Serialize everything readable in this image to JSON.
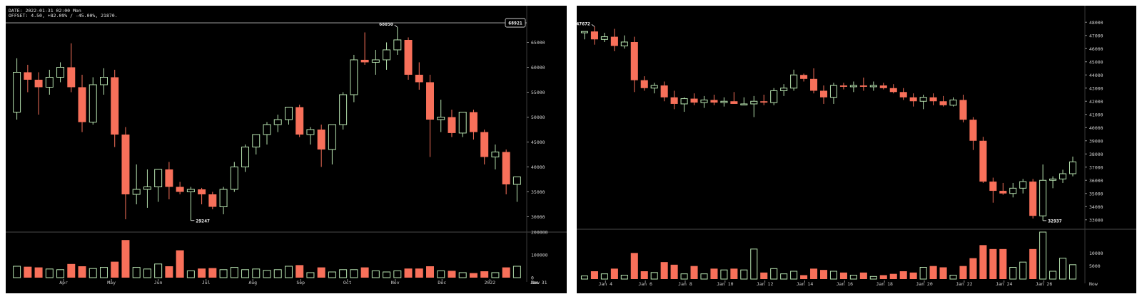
{
  "colors": {
    "background": "#000000",
    "up": "#b7e3b0",
    "down": "#f8705a",
    "axis_text": "#d0d0d0"
  },
  "chart_data": [
    {
      "type": "candlestick",
      "info_line_1": "DATE: 2022-01-31 02:00 Mon",
      "info_line_2": "OFFSET: 4.50, +82.09% / -45.00%, 21870.",
      "price_label": "68921",
      "high_label": "68050",
      "low_label": "29247",
      "ylim": [
        27500,
        69500
      ],
      "yticks": [
        "65000",
        "60000",
        "55000",
        "50000",
        "45000",
        "40000",
        "35000",
        "30000"
      ],
      "volume_ylim": [
        0,
        200000
      ],
      "volume_ticks": [
        "200000",
        "100000",
        "0"
      ],
      "xticks": [
        "Apr",
        "May",
        "Jun",
        "Jul",
        "Aug",
        "Sep",
        "Oct",
        "Nov",
        "Dec",
        "2022"
      ],
      "xtick_positions": [
        4.3,
        8.7,
        13.0,
        17.4,
        21.7,
        26.1,
        30.4,
        34.8,
        39.1,
        43.5
      ],
      "x_end_label": "Jan 31",
      "x_end_label_position": 48,
      "x_now_label": "Now",
      "candles": [
        {
          "o": 51000,
          "h": 61800,
          "l": 49500,
          "c": 59000,
          "v": 50000
        },
        {
          "o": 59000,
          "h": 60500,
          "l": 55000,
          "c": 57500,
          "v": 48000
        },
        {
          "o": 57500,
          "h": 59000,
          "l": 50500,
          "c": 56000,
          "v": 45000
        },
        {
          "o": 56000,
          "h": 59500,
          "l": 54500,
          "c": 58000,
          "v": 38000
        },
        {
          "o": 58000,
          "h": 61000,
          "l": 57000,
          "c": 60000,
          "v": 35000
        },
        {
          "o": 60000,
          "h": 64800,
          "l": 55000,
          "c": 56000,
          "v": 60000
        },
        {
          "o": 56000,
          "h": 58500,
          "l": 47000,
          "c": 49000,
          "v": 50000
        },
        {
          "o": 49000,
          "h": 58000,
          "l": 48500,
          "c": 56500,
          "v": 40000
        },
        {
          "o": 56500,
          "h": 59800,
          "l": 54500,
          "c": 58000,
          "v": 45000
        },
        {
          "o": 58000,
          "h": 59500,
          "l": 44000,
          "c": 46500,
          "v": 70000
        },
        {
          "o": 46500,
          "h": 48000,
          "l": 29500,
          "c": 34500,
          "v": 165000
        },
        {
          "o": 34500,
          "h": 40500,
          "l": 32500,
          "c": 35500,
          "v": 45000
        },
        {
          "o": 35500,
          "h": 39500,
          "l": 31800,
          "c": 36000,
          "v": 38000
        },
        {
          "o": 36000,
          "h": 39500,
          "l": 33000,
          "c": 39500,
          "v": 60000
        },
        {
          "o": 39500,
          "h": 41000,
          "l": 33500,
          "c": 36000,
          "v": 50000
        },
        {
          "o": 36000,
          "h": 37000,
          "l": 34500,
          "c": 35000,
          "v": 120000
        },
        {
          "o": 35000,
          "h": 36000,
          "l": 29247,
          "c": 35500,
          "v": 30000
        },
        {
          "o": 35500,
          "h": 35800,
          "l": 32500,
          "c": 34500,
          "v": 40000
        },
        {
          "o": 34500,
          "h": 35000,
          "l": 31500,
          "c": 32000,
          "v": 42000
        },
        {
          "o": 32000,
          "h": 36000,
          "l": 30500,
          "c": 35500,
          "v": 35000
        },
        {
          "o": 35500,
          "h": 41000,
          "l": 35000,
          "c": 40000,
          "v": 45000
        },
        {
          "o": 40000,
          "h": 44500,
          "l": 39000,
          "c": 44000,
          "v": 35000
        },
        {
          "o": 44000,
          "h": 46500,
          "l": 42500,
          "c": 46500,
          "v": 38000
        },
        {
          "o": 46500,
          "h": 49000,
          "l": 44500,
          "c": 48500,
          "v": 32000
        },
        {
          "o": 48500,
          "h": 50500,
          "l": 47000,
          "c": 49500,
          "v": 35000
        },
        {
          "o": 49500,
          "h": 52000,
          "l": 48500,
          "c": 52000,
          "v": 50000
        },
        {
          "o": 52000,
          "h": 52500,
          "l": 46000,
          "c": 46500,
          "v": 55000
        },
        {
          "o": 46500,
          "h": 48000,
          "l": 44500,
          "c": 47500,
          "v": 22000
        },
        {
          "o": 47500,
          "h": 48500,
          "l": 40000,
          "c": 43500,
          "v": 45000
        },
        {
          "o": 43500,
          "h": 48500,
          "l": 40500,
          "c": 48500,
          "v": 25000
        },
        {
          "o": 48500,
          "h": 55000,
          "l": 47500,
          "c": 54500,
          "v": 35000
        },
        {
          "o": 54500,
          "h": 62500,
          "l": 53000,
          "c": 61500,
          "v": 35000
        },
        {
          "o": 61500,
          "h": 67000,
          "l": 60500,
          "c": 61000,
          "v": 45000
        },
        {
          "o": 61000,
          "h": 63500,
          "l": 58500,
          "c": 61500,
          "v": 30000
        },
        {
          "o": 61500,
          "h": 65000,
          "l": 59500,
          "c": 63500,
          "v": 25000
        },
        {
          "o": 63500,
          "h": 68050,
          "l": 62500,
          "c": 65500,
          "v": 30000
        },
        {
          "o": 65500,
          "h": 66000,
          "l": 57500,
          "c": 58500,
          "v": 40000
        },
        {
          "o": 58500,
          "h": 61000,
          "l": 55500,
          "c": 57000,
          "v": 40000
        },
        {
          "o": 57000,
          "h": 58500,
          "l": 42000,
          "c": 49500,
          "v": 50000
        },
        {
          "o": 49500,
          "h": 53500,
          "l": 47000,
          "c": 50000,
          "v": 30000
        },
        {
          "o": 50000,
          "h": 51500,
          "l": 46000,
          "c": 46800,
          "v": 30000
        },
        {
          "o": 46800,
          "h": 51000,
          "l": 46000,
          "c": 51000,
          "v": 22000
        },
        {
          "o": 51000,
          "h": 51500,
          "l": 45500,
          "c": 47000,
          "v": 20000
        },
        {
          "o": 47000,
          "h": 47500,
          "l": 40500,
          "c": 42000,
          "v": 28000
        },
        {
          "o": 42000,
          "h": 44500,
          "l": 39500,
          "c": 43000,
          "v": 22000
        },
        {
          "o": 43000,
          "h": 43500,
          "l": 34500,
          "c": 36500,
          "v": 45000
        },
        {
          "o": 36500,
          "h": 38000,
          "l": 33000,
          "c": 38000,
          "v": 50000
        }
      ]
    },
    {
      "type": "candlestick",
      "high_label": "47672",
      "low_label": "32937",
      "ylim": [
        32500,
        48500
      ],
      "yticks": [
        "48000",
        "47000",
        "46000",
        "45000",
        "44000",
        "43000",
        "42000",
        "41000",
        "40000",
        "39000",
        "38000",
        "37000",
        "36000",
        "35000",
        "34000",
        "33000"
      ],
      "volume_ylim": [
        0,
        18000
      ],
      "volume_ticks": [
        "10000",
        "5000"
      ],
      "xticks": [
        "Jan 4",
        "Jan 6",
        "Jan 8",
        "Jan 10",
        "Jan 12",
        "Jan 14",
        "Jan 16",
        "Jan 18",
        "Jan 20",
        "Jan 22",
        "Jan 24",
        "Jan 26"
      ],
      "xtick_positions": [
        2.1,
        6.1,
        10.1,
        14.1,
        18.1,
        22.1,
        26.1,
        30.1,
        34.1,
        38.1,
        42.1,
        46.1
      ],
      "x_now_label": "Now",
      "candles": [
        {
          "o": 47200,
          "h": 47300,
          "l": 46700,
          "c": 47300,
          "v": 1200
        },
        {
          "o": 47300,
          "h": 47672,
          "l": 46300,
          "c": 46700,
          "v": 3000
        },
        {
          "o": 46700,
          "h": 47200,
          "l": 46500,
          "c": 46900,
          "v": 2000
        },
        {
          "o": 46900,
          "h": 47500,
          "l": 45800,
          "c": 46200,
          "v": 4000
        },
        {
          "o": 46200,
          "h": 47000,
          "l": 46000,
          "c": 46500,
          "v": 1500
        },
        {
          "o": 46500,
          "h": 46900,
          "l": 42700,
          "c": 43600,
          "v": 10000
        },
        {
          "o": 43600,
          "h": 43900,
          "l": 42800,
          "c": 43000,
          "v": 3000
        },
        {
          "o": 43000,
          "h": 43400,
          "l": 42600,
          "c": 43200,
          "v": 2500
        },
        {
          "o": 43200,
          "h": 43500,
          "l": 42000,
          "c": 42300,
          "v": 6500
        },
        {
          "o": 42300,
          "h": 42800,
          "l": 41400,
          "c": 41800,
          "v": 5500
        },
        {
          "o": 41800,
          "h": 42300,
          "l": 41200,
          "c": 42200,
          "v": 2000
        },
        {
          "o": 42200,
          "h": 42600,
          "l": 41700,
          "c": 41900,
          "v": 5000
        },
        {
          "o": 41900,
          "h": 42400,
          "l": 41500,
          "c": 42100,
          "v": 2000
        },
        {
          "o": 42100,
          "h": 42500,
          "l": 41700,
          "c": 41900,
          "v": 4000
        },
        {
          "o": 41900,
          "h": 42300,
          "l": 41600,
          "c": 42000,
          "v": 3500
        },
        {
          "o": 42000,
          "h": 42700,
          "l": 41800,
          "c": 41800,
          "v": 4000
        },
        {
          "o": 41800,
          "h": 42300,
          "l": 41700,
          "c": 41800,
          "v": 3500
        },
        {
          "o": 41800,
          "h": 42400,
          "l": 40800,
          "c": 42000,
          "v": 11500
        },
        {
          "o": 42000,
          "h": 42500,
          "l": 41700,
          "c": 41900,
          "v": 2500
        },
        {
          "o": 41900,
          "h": 43000,
          "l": 41700,
          "c": 42800,
          "v": 4000
        },
        {
          "o": 42800,
          "h": 43300,
          "l": 42400,
          "c": 43000,
          "v": 2000
        },
        {
          "o": 43000,
          "h": 44400,
          "l": 42800,
          "c": 44000,
          "v": 3000
        },
        {
          "o": 44000,
          "h": 44100,
          "l": 43500,
          "c": 43700,
          "v": 1500
        },
        {
          "o": 43700,
          "h": 44500,
          "l": 42600,
          "c": 42800,
          "v": 4000
        },
        {
          "o": 42800,
          "h": 43200,
          "l": 41800,
          "c": 42300,
          "v": 3500
        },
        {
          "o": 42300,
          "h": 43400,
          "l": 41800,
          "c": 43200,
          "v": 3000
        },
        {
          "o": 43200,
          "h": 43400,
          "l": 42900,
          "c": 43100,
          "v": 2500
        },
        {
          "o": 43100,
          "h": 43500,
          "l": 42700,
          "c": 43200,
          "v": 1500
        },
        {
          "o": 43200,
          "h": 43800,
          "l": 42800,
          "c": 43100,
          "v": 2500
        },
        {
          "o": 43100,
          "h": 43500,
          "l": 42800,
          "c": 43200,
          "v": 1000
        },
        {
          "o": 43200,
          "h": 43400,
          "l": 42900,
          "c": 43000,
          "v": 1500
        },
        {
          "o": 43000,
          "h": 43300,
          "l": 42600,
          "c": 42700,
          "v": 2000
        },
        {
          "o": 42700,
          "h": 43000,
          "l": 42100,
          "c": 42300,
          "v": 3000
        },
        {
          "o": 42300,
          "h": 42600,
          "l": 41600,
          "c": 42000,
          "v": 2500
        },
        {
          "o": 42000,
          "h": 42500,
          "l": 41400,
          "c": 42300,
          "v": 4500
        },
        {
          "o": 42300,
          "h": 42600,
          "l": 41700,
          "c": 42000,
          "v": 5000
        },
        {
          "o": 42000,
          "h": 42400,
          "l": 41600,
          "c": 41700,
          "v": 4500
        },
        {
          "o": 41700,
          "h": 42300,
          "l": 41600,
          "c": 42100,
          "v": 1500
        },
        {
          "o": 42100,
          "h": 42500,
          "l": 40400,
          "c": 40600,
          "v": 5000
        },
        {
          "o": 40600,
          "h": 40800,
          "l": 38300,
          "c": 39000,
          "v": 8000
        },
        {
          "o": 39000,
          "h": 39300,
          "l": 35800,
          "c": 35900,
          "v": 13000
        },
        {
          "o": 35900,
          "h": 36200,
          "l": 34300,
          "c": 35200,
          "v": 11500
        },
        {
          "o": 35200,
          "h": 35800,
          "l": 34900,
          "c": 35000,
          "v": 11500
        },
        {
          "o": 35000,
          "h": 35800,
          "l": 34700,
          "c": 35400,
          "v": 4500
        },
        {
          "o": 35400,
          "h": 36100,
          "l": 35000,
          "c": 35900,
          "v": 6500
        },
        {
          "o": 35900,
          "h": 36100,
          "l": 33100,
          "c": 33300,
          "v": 11500
        },
        {
          "o": 33300,
          "h": 37200,
          "l": 32937,
          "c": 36000,
          "v": 18000
        },
        {
          "o": 36000,
          "h": 36300,
          "l": 35400,
          "c": 36100,
          "v": 3000
        },
        {
          "o": 36100,
          "h": 36800,
          "l": 35800,
          "c": 36500,
          "v": 8000
        },
        {
          "o": 36500,
          "h": 37800,
          "l": 36300,
          "c": 37400,
          "v": 5500
        }
      ]
    }
  ]
}
